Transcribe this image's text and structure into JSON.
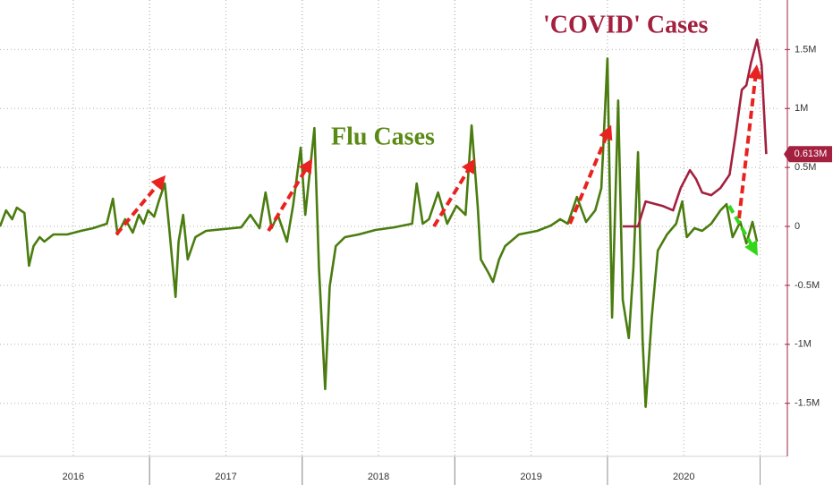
{
  "chart_data": {
    "type": "line",
    "annotations": [
      "Flu Cases",
      "'COVID' Cases"
    ],
    "xlim": [
      2016.02,
      2021.12
    ],
    "xticks": [
      {
        "value": 2016.5,
        "label": "2016"
      },
      {
        "value": 2017.5,
        "label": "2017"
      },
      {
        "value": 2018.5,
        "label": "2018"
      },
      {
        "value": 2019.5,
        "label": "2019"
      },
      {
        "value": 2020.5,
        "label": "2020"
      }
    ],
    "ylim": [
      -1950000,
      1920000
    ],
    "yticks": [
      {
        "value": 1500000,
        "label": "1.5M"
      },
      {
        "value": 1000000,
        "label": "1M"
      },
      {
        "value": 500000,
        "label": "0.5M"
      },
      0,
      {
        "value": -500000,
        "label": "-0.5M"
      },
      {
        "value": -1000000,
        "label": "-1M"
      },
      {
        "value": -1500000,
        "label": "-1.5M"
      }
    ],
    "grid": true,
    "series": [
      {
        "name": "Flu Cases",
        "color": "#4a7c0f",
        "x": [
          2016.02,
          2016.06,
          2016.1,
          2016.13,
          2016.18,
          2016.21,
          2016.24,
          2016.28,
          2016.31,
          2016.37,
          2016.46,
          2016.55,
          2016.63,
          2016.72,
          2016.76,
          2016.79,
          2016.84,
          2016.89,
          2016.93,
          2016.96,
          2016.99,
          2017.03,
          2017.06,
          2017.1,
          2017.13,
          2017.17,
          2017.19,
          2017.22,
          2017.25,
          2017.3,
          2017.37,
          2017.48,
          2017.6,
          2017.66,
          2017.72,
          2017.76,
          2017.8,
          2017.84,
          2017.9,
          2017.94,
          2017.99,
          2018.02,
          2018.08,
          2018.11,
          2018.15,
          2018.18,
          2018.22,
          2018.28,
          2018.37,
          2018.48,
          2018.6,
          2018.72,
          2018.75,
          2018.79,
          2018.83,
          2018.89,
          2018.95,
          2019.01,
          2019.07,
          2019.11,
          2019.15,
          2019.17,
          2019.22,
          2019.25,
          2019.29,
          2019.33,
          2019.42,
          2019.54,
          2019.63,
          2019.69,
          2019.74,
          2019.8,
          2019.86,
          2019.92,
          2019.96,
          2020.0,
          2020.03,
          2020.07,
          2020.1,
          2020.14,
          2020.17,
          2020.2,
          2020.23,
          2020.25,
          2020.29,
          2020.33,
          2020.39,
          2020.45,
          2020.49,
          2020.52,
          2020.57,
          2020.62,
          2020.68,
          2020.74,
          2020.78,
          2020.82,
          2020.87,
          2020.91,
          2020.95,
          2020.98
        ],
        "values": [
          0,
          136000,
          61000,
          159000,
          114000,
          -333000,
          -167000,
          -91000,
          -129000,
          -68000,
          -68000,
          -38000,
          -15000,
          23000,
          235000,
          -68000,
          61000,
          -53000,
          98000,
          23000,
          136000,
          83000,
          212000,
          364000,
          -38000,
          -598000,
          -129000,
          98000,
          -280000,
          -91000,
          -38000,
          -23000,
          -8000,
          98000,
          -15000,
          288000,
          -15000,
          98000,
          -129000,
          174000,
          667000,
          98000,
          833000,
          -356000,
          -1379000,
          -508000,
          -167000,
          -91000,
          -68000,
          -30000,
          -8000,
          23000,
          364000,
          23000,
          61000,
          288000,
          23000,
          174000,
          98000,
          856000,
          174000,
          -280000,
          -394000,
          -470000,
          -280000,
          -167000,
          -68000,
          -38000,
          8000,
          61000,
          23000,
          250000,
          38000,
          136000,
          326000,
          1424000,
          -773000,
          1068000,
          -621000,
          -947000,
          -356000,
          629000,
          -962000,
          -1530000,
          -773000,
          -205000,
          -68000,
          23000,
          212000,
          -91000,
          -15000,
          -38000,
          23000,
          136000,
          189000,
          -91000,
          38000,
          -144000,
          38000,
          -129000
        ]
      },
      {
        "name": "'COVID' Cases",
        "color": "#a3203f",
        "x": [
          2020.1,
          2020.2,
          2020.25,
          2020.36,
          2020.43,
          2020.48,
          2020.54,
          2020.58,
          2020.62,
          2020.68,
          2020.74,
          2020.8,
          2020.84,
          2020.88,
          2020.91,
          2020.94,
          2020.98,
          2021.01,
          2021.04
        ],
        "values": [
          0,
          0,
          212000,
          174000,
          136000,
          326000,
          477000,
          402000,
          288000,
          265000,
          326000,
          439000,
          780000,
          1159000,
          1197000,
          1386000,
          1583000,
          1371000,
          613000
        ],
        "value_labels": [
          null,
          null,
          null,
          null,
          null,
          null,
          null,
          null,
          null,
          null,
          null,
          null,
          null,
          null,
          null,
          null,
          null,
          null,
          "0.613M"
        ]
      }
    ]
  }
}
